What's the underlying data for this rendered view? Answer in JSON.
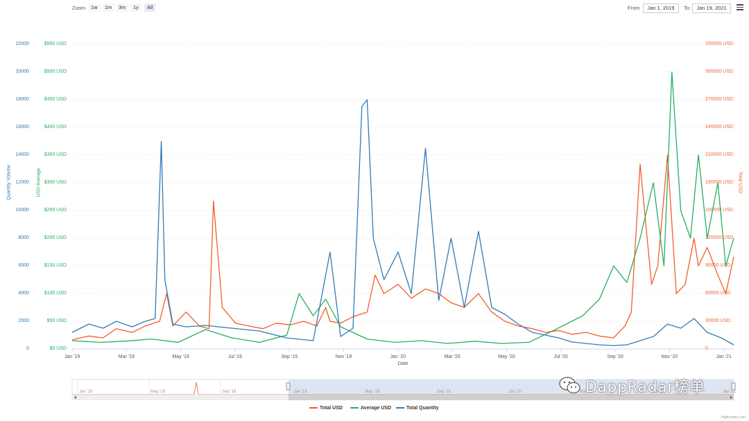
{
  "toolbar": {
    "zoom_label": "Zoom",
    "zoom_buttons": [
      "1w",
      "1m",
      "3m",
      "1y",
      "All"
    ],
    "active_zoom": "All",
    "from_label": "From",
    "from_value": "Jan 1, 2019",
    "to_label": "To:",
    "to_value": "Jan 19, 2021",
    "menu_icon": "hamburger-menu-icon"
  },
  "watermark": {
    "text": "DappRadar榜单",
    "icon": "wechat-logo-icon"
  },
  "credits": "Highcharts.com",
  "colors": {
    "total_usd": "#f45b2a",
    "average_usd": "#27ae60",
    "total_quantity": "#2f7ab7",
    "navigator_fill": "#d9e1f2"
  },
  "navigator": {
    "labels": [
      "Jan '18",
      "May '18",
      "Sep '18",
      "Jan '19",
      "May '19",
      "Sep '19",
      "Jan '20",
      "May '20",
      "Sep '20",
      "Jan '21"
    ],
    "selected_from": "Jan '19",
    "selected_to": "Jan '21"
  },
  "chart_data": {
    "type": "line",
    "xlabel": "Date",
    "x_ticks": [
      "Jan '19",
      "Mar '19",
      "May '19",
      "Jul '19",
      "Sep '19",
      "Nov '19",
      "Jan '20",
      "Mar '20",
      "May '20",
      "Jul '20",
      "Sep '20",
      "Nov '20",
      "Jan '21"
    ],
    "x_range": [
      "2019-01-01",
      "2021-01-19"
    ],
    "grid": true,
    "legend_position": "bottom-center",
    "axes": {
      "quantity": {
        "label": "Quantity Volume",
        "ticks": [
          "0",
          "2000",
          "4000",
          "6000",
          "8000",
          "10000",
          "12000",
          "14000",
          "16000",
          "18000",
          "20000",
          "22000"
        ],
        "range": [
          0,
          22000
        ]
      },
      "average": {
        "label": "USD Average",
        "ticks": [
          "$0 USD",
          "$50 USD",
          "$100 USD",
          "$150 USD",
          "$200 USD",
          "$250 USD",
          "$300 USD",
          "$350 USD",
          "$400 USD",
          "$450 USD",
          "$500 USD",
          "$550 USD"
        ],
        "range": [
          0,
          550
        ]
      },
      "total": {
        "label": "Total USD",
        "ticks": [
          "0",
          "30000 USD",
          "60000 USD",
          "90000 USD",
          "120000 USD",
          "150000 USD",
          "180000 USD",
          "210000 USD",
          "240000 USD",
          "270000 USD",
          "300000 USD",
          "330000 USD"
        ],
        "range": [
          0,
          330000
        ]
      }
    },
    "series": [
      {
        "name": "Total USD",
        "axis": "total",
        "color": "#f45b2a",
        "x": [
          "2019-01-01",
          "2019-01-20",
          "2019-02-05",
          "2019-02-20",
          "2019-03-10",
          "2019-03-25",
          "2019-04-10",
          "2019-04-18",
          "2019-04-25",
          "2019-05-10",
          "2019-05-25",
          "2019-06-05",
          "2019-06-10",
          "2019-06-20",
          "2019-07-05",
          "2019-07-20",
          "2019-08-05",
          "2019-08-20",
          "2019-09-05",
          "2019-09-20",
          "2019-10-05",
          "2019-10-15",
          "2019-10-20",
          "2019-11-01",
          "2019-11-15",
          "2019-12-01",
          "2019-12-10",
          "2019-12-20",
          "2020-01-05",
          "2020-01-20",
          "2020-02-05",
          "2020-02-20",
          "2020-03-05",
          "2020-03-20",
          "2020-04-05",
          "2020-04-20",
          "2020-05-05",
          "2020-05-20",
          "2020-06-05",
          "2020-06-20",
          "2020-07-05",
          "2020-07-20",
          "2020-08-05",
          "2020-08-20",
          "2020-09-05",
          "2020-09-18",
          "2020-09-25",
          "2020-10-05",
          "2020-10-18",
          "2020-10-25",
          "2020-11-05",
          "2020-11-15",
          "2020-11-25",
          "2020-12-05",
          "2020-12-10",
          "2020-12-20",
          "2021-01-01",
          "2021-01-10",
          "2021-01-19"
        ],
        "values": [
          10000,
          14000,
          12000,
          22000,
          18000,
          25000,
          30000,
          60000,
          25000,
          40000,
          25000,
          22000,
          160000,
          45000,
          28000,
          25000,
          22000,
          28000,
          26000,
          30000,
          25000,
          45000,
          30000,
          28000,
          35000,
          40000,
          80000,
          60000,
          70000,
          55000,
          65000,
          60000,
          50000,
          45000,
          60000,
          40000,
          30000,
          25000,
          22000,
          18000,
          20000,
          16000,
          18000,
          14000,
          12000,
          25000,
          40000,
          200000,
          70000,
          90000,
          210000,
          60000,
          70000,
          120000,
          90000,
          110000,
          80000,
          60000,
          100000
        ]
      },
      {
        "name": "Average USD",
        "axis": "average",
        "color": "#27ae60",
        "x": [
          "2019-01-01",
          "2019-02-01",
          "2019-03-01",
          "2019-04-01",
          "2019-05-01",
          "2019-06-01",
          "2019-07-01",
          "2019-08-01",
          "2019-09-01",
          "2019-09-15",
          "2019-10-01",
          "2019-10-15",
          "2019-11-01",
          "2019-12-01",
          "2020-01-01",
          "2020-02-01",
          "2020-03-01",
          "2020-04-01",
          "2020-05-01",
          "2020-06-01",
          "2020-07-01",
          "2020-08-01",
          "2020-08-20",
          "2020-09-05",
          "2020-09-20",
          "2020-10-05",
          "2020-10-20",
          "2020-11-01",
          "2020-11-10",
          "2020-11-20",
          "2020-12-01",
          "2020-12-10",
          "2020-12-20",
          "2021-01-01",
          "2021-01-10",
          "2021-01-19"
        ],
        "values": [
          15,
          12,
          14,
          18,
          12,
          35,
          20,
          12,
          25,
          100,
          60,
          90,
          40,
          18,
          12,
          15,
          10,
          14,
          10,
          12,
          35,
          60,
          90,
          150,
          120,
          200,
          300,
          150,
          500,
          250,
          200,
          350,
          200,
          300,
          150,
          200
        ]
      },
      {
        "name": "Total Quantity",
        "axis": "quantity",
        "color": "#2f7ab7",
        "x": [
          "2019-01-01",
          "2019-01-20",
          "2019-02-05",
          "2019-02-20",
          "2019-03-10",
          "2019-03-25",
          "2019-04-05",
          "2019-04-12",
          "2019-04-16",
          "2019-04-25",
          "2019-05-10",
          "2019-06-01",
          "2019-07-01",
          "2019-08-01",
          "2019-09-01",
          "2019-10-01",
          "2019-10-20",
          "2019-11-01",
          "2019-11-15",
          "2019-11-25",
          "2019-12-01",
          "2019-12-08",
          "2019-12-20",
          "2020-01-05",
          "2020-01-20",
          "2020-02-05",
          "2020-02-20",
          "2020-03-05",
          "2020-03-20",
          "2020-04-05",
          "2020-04-20",
          "2020-05-05",
          "2020-05-20",
          "2020-06-05",
          "2020-06-20",
          "2020-07-05",
          "2020-07-20",
          "2020-08-05",
          "2020-08-20",
          "2020-09-05",
          "2020-09-20",
          "2020-10-05",
          "2020-10-20",
          "2020-11-05",
          "2020-11-20",
          "2020-12-05",
          "2020-12-20",
          "2021-01-05",
          "2021-01-19"
        ],
        "values": [
          1200,
          1800,
          1500,
          2000,
          1600,
          2000,
          2200,
          15000,
          5000,
          1800,
          1600,
          1700,
          1500,
          1300,
          800,
          600,
          7000,
          900,
          1500,
          17500,
          18000,
          8000,
          5000,
          7000,
          4000,
          14500,
          3500,
          8000,
          3000,
          8500,
          3000,
          2500,
          1800,
          1200,
          1000,
          800,
          500,
          400,
          300,
          250,
          300,
          600,
          900,
          1800,
          1500,
          2200,
          1200,
          800,
          300
        ]
      }
    ]
  }
}
